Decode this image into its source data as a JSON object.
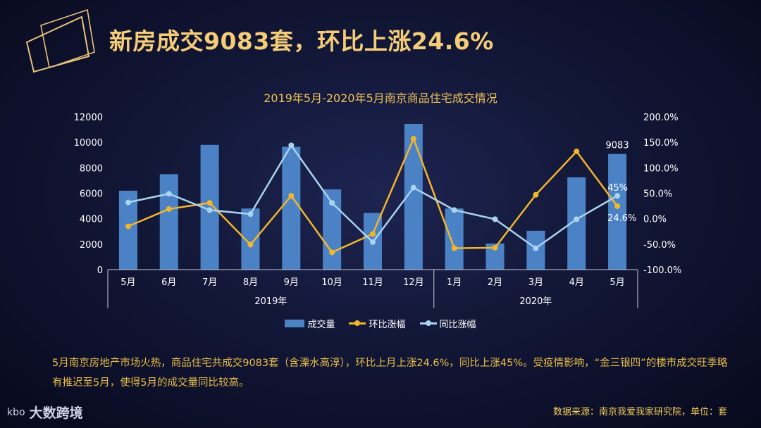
{
  "page": {
    "title": "新房成交9083套，环比上涨24.6%",
    "body_text": "5月南京房地产市场火热，商品住宅共成交9083套（含溧水高淳），环比上月上涨24.6%，同比上涨45%。受疫情影响，“金三银四”的楼市成交旺季略有推迟至5月，使得5月的成交量同比较高。",
    "source": "数据来源：南京我爱我家研究院，单位：套",
    "brand": "大数跨境",
    "brand_mark": "kbo"
  },
  "colors": {
    "bar": "#4b82c6",
    "mom_line": "#f2b62c",
    "yoy_line": "#a8d4ee",
    "title": "#f5cd78",
    "text": "#ffffff"
  },
  "chart_data": {
    "type": "bar",
    "title": "2019年5月-2020年5月南京商品住宅成交情况",
    "categories": [
      "5月",
      "6月",
      "7月",
      "8月",
      "9月",
      "10月",
      "11月",
      "12月",
      "1月",
      "2月",
      "3月",
      "4月",
      "5月"
    ],
    "groups": [
      {
        "label": "2019年",
        "count": 8
      },
      {
        "label": "2020年",
        "count": 5
      }
    ],
    "series": [
      {
        "name": "成交量",
        "type": "bar",
        "axis": "left",
        "values": [
          6200,
          7500,
          9800,
          4800,
          9650,
          6300,
          4450,
          11450,
          4800,
          2050,
          3050,
          7250,
          9083
        ]
      },
      {
        "name": "环比涨幅",
        "type": "line",
        "axis": "right",
        "values": [
          -15,
          19,
          31,
          -51,
          45,
          -66,
          -30,
          157,
          -58,
          -57,
          47,
          132,
          24.6
        ]
      },
      {
        "name": "同比涨幅",
        "type": "line",
        "axis": "right",
        "values": [
          32,
          49,
          17,
          9,
          144,
          31,
          -46,
          61,
          17,
          -1,
          -58,
          -1,
          45
        ]
      }
    ],
    "left_axis": {
      "ylim": [
        0,
        12000
      ],
      "ticks": [
        "0",
        "2000",
        "4000",
        "6000",
        "8000",
        "10000",
        "12000"
      ]
    },
    "right_axis": {
      "ylim": [
        -100,
        200
      ],
      "ticks": [
        "-100.0%",
        "-50.0%",
        "0.0%",
        "50.0%",
        "100.0%",
        "150.0%",
        "200.0%"
      ]
    },
    "annotations": [
      {
        "text": "9083",
        "series": "成交量",
        "index": 12
      },
      {
        "text": "45%",
        "series": "同比涨幅",
        "index": 12
      },
      {
        "text": "24.6%",
        "series": "环比涨幅",
        "index": 12
      }
    ],
    "grid": false,
    "legend": "bottom"
  }
}
